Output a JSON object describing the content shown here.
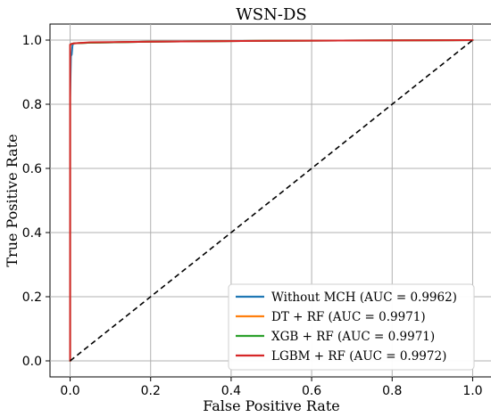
{
  "chart_data": {
    "type": "line",
    "title": "WSN-DS",
    "xlabel": "False Positive Rate",
    "ylabel": "True Positive Rate",
    "xlim": [
      -0.05,
      1.05
    ],
    "ylim": [
      -0.05,
      1.05
    ],
    "xticks": [
      0.0,
      0.2,
      0.4,
      0.6,
      0.8,
      1.0
    ],
    "yticks": [
      0.0,
      0.2,
      0.4,
      0.6,
      0.8,
      1.0
    ],
    "xtick_labels": [
      "0.0",
      "0.2",
      "0.4",
      "0.6",
      "0.8",
      "1.0"
    ],
    "ytick_labels": [
      "0.0",
      "0.2",
      "0.4",
      "0.6",
      "0.8",
      "1.0"
    ],
    "grid": true,
    "legend_position": "bottom-right",
    "series": [
      {
        "name": "Without MCH (AUC = 0.9962)",
        "color": "#1f77b4",
        "x": [
          0.0,
          0.0,
          0.002,
          0.004,
          0.006,
          0.008,
          0.01,
          0.05,
          0.2,
          0.5,
          1.0
        ],
        "y": [
          0.0,
          0.82,
          0.95,
          0.955,
          0.985,
          0.988,
          0.99,
          0.992,
          0.995,
          0.998,
          1.0
        ]
      },
      {
        "name": "DT + RF (AUC = 0.9971)",
        "color": "#ff7f0e",
        "x": [
          0.0,
          0.0,
          0.003,
          0.01,
          0.05,
          0.2,
          0.5,
          1.0
        ],
        "y": [
          0.0,
          0.985,
          0.988,
          0.99,
          0.992,
          0.995,
          0.998,
          1.0
        ]
      },
      {
        "name": "XGB + RF (AUC = 0.9971)",
        "color": "#2ca02c",
        "x": [
          0.0,
          0.0,
          0.003,
          0.01,
          0.05,
          0.2,
          0.5,
          1.0
        ],
        "y": [
          0.0,
          0.985,
          0.988,
          0.99,
          0.992,
          0.995,
          0.998,
          1.0
        ]
      },
      {
        "name": "LGBM + RF (AUC = 0.9972)",
        "color": "#d62728",
        "x": [
          0.0,
          0.0,
          0.003,
          0.01,
          0.05,
          0.2,
          0.5,
          1.0
        ],
        "y": [
          0.0,
          0.986,
          0.988,
          0.99,
          0.993,
          0.995,
          0.998,
          1.0
        ]
      }
    ],
    "reference_line": {
      "color": "#000000",
      "x": [
        0.0,
        1.0
      ],
      "y": [
        0.0,
        1.0
      ]
    }
  }
}
